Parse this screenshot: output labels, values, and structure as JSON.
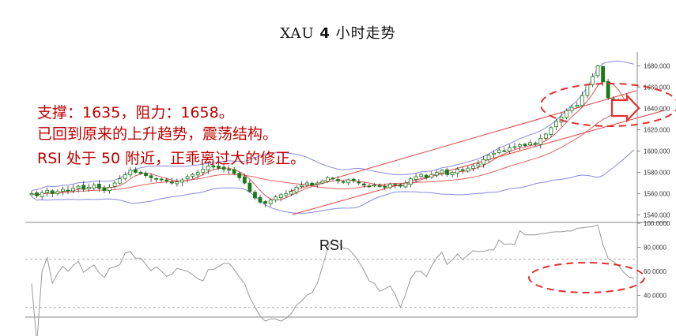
{
  "title": {
    "symbol": "XAU",
    "num": "4",
    "suffix": "小时走势"
  },
  "annotations": [
    "支撑：1635，阻力：1658。",
    "已回到原来的上升趋势，震荡结构。",
    "RSI 处于 50 附近，正乖离过大的修正。"
  ],
  "colors": {
    "up": "#1a7a1a",
    "down": "#1a7a1a",
    "upper_band": "#8888dd",
    "lower_band": "#8888dd",
    "ma": "#e06060",
    "trend": "#e04040",
    "annotation": "#c00000",
    "rsi": "#999999"
  },
  "chart_data": [
    {
      "type": "candlestick",
      "yaxis": {
        "ticks": [
          "1680.000",
          "1660.000",
          "1640.000",
          "1620.000",
          "1600.000",
          "1580.000",
          "1560.000",
          "1540.000"
        ],
        "ylim": [
          1533,
          1693
        ]
      },
      "closes": [
        1560,
        1558,
        1561,
        1563,
        1560,
        1562,
        1564,
        1563,
        1565,
        1567,
        1564,
        1566,
        1568,
        1565,
        1563,
        1566,
        1570,
        1574,
        1578,
        1582,
        1580,
        1579,
        1577,
        1575,
        1574,
        1573,
        1572,
        1570,
        1571,
        1573,
        1576,
        1578,
        1580,
        1583,
        1586,
        1585,
        1584,
        1583,
        1582,
        1579,
        1575,
        1570,
        1562,
        1556,
        1552,
        1551,
        1554,
        1557,
        1559,
        1560,
        1562,
        1566,
        1568,
        1570,
        1568,
        1570,
        1572,
        1575,
        1574,
        1572,
        1571,
        1573,
        1572,
        1570,
        1568,
        1567,
        1568,
        1567,
        1566,
        1569,
        1568,
        1567,
        1570,
        1574,
        1576,
        1578,
        1575,
        1578,
        1580,
        1582,
        1578,
        1580,
        1583,
        1582,
        1584,
        1586,
        1588,
        1592,
        1596,
        1598,
        1601,
        1600,
        1603,
        1604,
        1606,
        1605,
        1608,
        1607,
        1612,
        1616,
        1622,
        1628,
        1632,
        1638,
        1641,
        1643,
        1652,
        1662,
        1670,
        1680,
        1665,
        1650,
        1648,
        1645,
        1640,
        1638,
        1640
      ],
      "rsi": {
        "label": "RSI",
        "ticks": [
          "100.0000",
          "80.0000",
          "60.0000",
          "40.0000"
        ],
        "ylim": [
          22,
          100
        ],
        "levels": [
          30,
          70
        ]
      }
    }
  ]
}
